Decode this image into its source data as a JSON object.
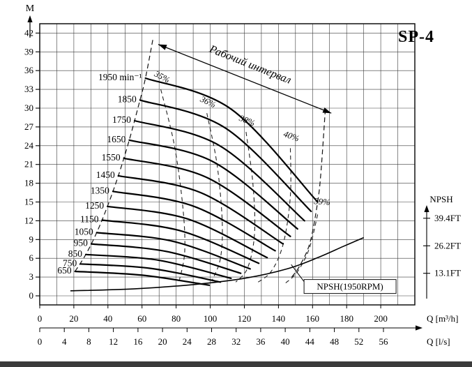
{
  "page": {
    "background": "#ffffff",
    "bottom_bar_color": "#3b3b3b"
  },
  "chart_data": {
    "type": "line",
    "title": "SP-4",
    "y_axis": {
      "label": "M",
      "ticks": [
        0,
        3,
        6,
        9,
        12,
        15,
        18,
        21,
        24,
        27,
        30,
        33,
        36,
        39,
        42
      ],
      "max": 43.5
    },
    "x_axis_m3h": {
      "label": "Q [m³/h]",
      "ticks": [
        0,
        20,
        40,
        60,
        80,
        100,
        120,
        140,
        160,
        180,
        200
      ],
      "max": 220
    },
    "x_axis_ls": {
      "label": "Q [l/s]",
      "ticks": [
        0,
        4,
        8,
        12,
        16,
        20,
        24,
        28,
        32,
        36,
        40,
        44,
        48,
        52,
        56
      ],
      "factor_to_m3h": 3.6
    },
    "npsh_axis": {
      "label": "NPSH",
      "ticks": [
        {
          "label": "39.4FT",
          "m": 12.4
        },
        {
          "label": "26.2FT",
          "m": 8.0
        },
        {
          "label": "13.1FT",
          "m": 3.6
        }
      ]
    },
    "series": [
      {
        "rpm": "1950 min⁻¹",
        "points": [
          [
            62.0,
            34.8
          ],
          [
            112.5,
            29.8
          ],
          [
            163.0,
            15.0
          ]
        ]
      },
      {
        "rpm": "1850",
        "points": [
          [
            58.8,
            31.3
          ],
          [
            109.0,
            26.8
          ],
          [
            159.2,
            13.5
          ]
        ]
      },
      {
        "rpm": "1750",
        "points": [
          [
            55.6,
            28.0
          ],
          [
            105.5,
            24.0
          ],
          [
            155.3,
            12.0
          ]
        ]
      },
      {
        "rpm": "1650",
        "points": [
          [
            52.5,
            24.9
          ],
          [
            101.9,
            21.4
          ],
          [
            151.2,
            10.7
          ]
        ]
      },
      {
        "rpm": "1550",
        "points": [
          [
            49.3,
            22.0
          ],
          [
            98.2,
            18.9
          ],
          [
            147.0,
            9.5
          ]
        ]
      },
      {
        "rpm": "1450",
        "points": [
          [
            46.1,
            19.2
          ],
          [
            94.4,
            16.5
          ],
          [
            142.7,
            8.3
          ]
        ]
      },
      {
        "rpm": "1350",
        "points": [
          [
            42.9,
            16.7
          ],
          [
            90.5,
            14.3
          ],
          [
            138.1,
            7.2
          ]
        ]
      },
      {
        "rpm": "1250",
        "points": [
          [
            39.7,
            14.3
          ],
          [
            86.6,
            12.3
          ],
          [
            133.4,
            6.1
          ]
        ]
      },
      {
        "rpm": "1150",
        "points": [
          [
            36.6,
            12.1
          ],
          [
            82.6,
            10.4
          ],
          [
            128.5,
            5.2
          ]
        ]
      },
      {
        "rpm": "1050",
        "points": [
          [
            33.4,
            10.1
          ],
          [
            78.4,
            8.7
          ],
          [
            123.4,
            4.3
          ]
        ]
      },
      {
        "rpm": "950",
        "points": [
          [
            30.2,
            8.3
          ],
          [
            74.1,
            7.1
          ],
          [
            117.9,
            3.6
          ]
        ]
      },
      {
        "rpm": "850",
        "points": [
          [
            27.0,
            6.6
          ],
          [
            69.6,
            5.7
          ],
          [
            112.2,
            2.8
          ]
        ]
      },
      {
        "rpm": "750",
        "points": [
          [
            23.8,
            5.1
          ],
          [
            64.9,
            4.4
          ],
          [
            106.0,
            2.2
          ]
        ]
      },
      {
        "rpm": "650",
        "points": [
          [
            20.7,
            3.9
          ],
          [
            60.1,
            3.3
          ],
          [
            99.4,
            1.7
          ]
        ]
      }
    ],
    "efficiency_lines": [
      {
        "label": "35%",
        "angle": 28,
        "label_pos": [
          71,
          34.6
        ],
        "points": [
          [
            71,
            33.0
          ],
          [
            79,
            24.0
          ],
          [
            84,
            14.0
          ],
          [
            85,
            7.0
          ],
          [
            82,
            2.6
          ]
        ]
      },
      {
        "label": "36%",
        "angle": 25,
        "label_pos": [
          98,
          30.6
        ],
        "points": [
          [
            98,
            29.2
          ],
          [
            104,
            21.0
          ],
          [
            107,
            12.0
          ],
          [
            106,
            6.0
          ],
          [
            101,
            2.4
          ]
        ]
      },
      {
        "label": "38%",
        "angle": 22,
        "label_pos": [
          121,
          27.6
        ],
        "points": [
          [
            121,
            26.2
          ],
          [
            125,
            18.0
          ],
          [
            126,
            10.0
          ],
          [
            122,
            4.5
          ],
          [
            115,
            2.2
          ]
        ]
      },
      {
        "label": "40%",
        "angle": 20,
        "label_pos": [
          147,
          25.1
        ],
        "points": [
          [
            147,
            23.6
          ],
          [
            147,
            16.0
          ],
          [
            143,
            8.5
          ],
          [
            136,
            4.0
          ],
          [
            127,
            2.0
          ]
        ]
      },
      {
        "label": "39%",
        "angle": 5,
        "label_pos": [
          165.5,
          14.6
        ],
        "points": [
          [
            163,
            13.0
          ],
          [
            158,
            7.5
          ],
          [
            151,
            3.8
          ],
          [
            144,
            2.0
          ]
        ]
      }
    ],
    "working_range": {
      "label": "Рабочий интервал",
      "left_boundary": [
        [
          20.7,
          3.9
        ],
        [
          27.0,
          6.6
        ],
        [
          33.4,
          10.1
        ],
        [
          39.7,
          14.3
        ],
        [
          46.1,
          19.2
        ],
        [
          52.5,
          24.9
        ],
        [
          58.8,
          31.3
        ],
        [
          62.0,
          34.8
        ],
        [
          66.5,
          41.2
        ]
      ],
      "right_boundary": [
        [
          167.5,
          29.8
        ],
        [
          165.0,
          20.0
        ],
        [
          163.0,
          15.0
        ],
        [
          158.5,
          8.5
        ],
        [
          152.5,
          4.8
        ],
        [
          147.5,
          2.9
        ]
      ],
      "arrow_from": [
        69.5,
        40.2
      ],
      "arrow_to": [
        171.0,
        29.2
      ]
    },
    "npsh_curve": {
      "label": "NPSH(1950RPM)",
      "points": [
        [
          18,
          0.8
        ],
        [
          55,
          1.1
        ],
        [
          90,
          1.8
        ],
        [
          120,
          2.8
        ],
        [
          145,
          4.3
        ],
        [
          163,
          6.1
        ],
        [
          178,
          7.9
        ],
        [
          190,
          9.3
        ]
      ],
      "label_center": [
        182,
        1.5
      ],
      "leader_from": [
        155.5,
        2.1
      ],
      "leader_to": [
        147.5,
        5.0
      ]
    }
  }
}
